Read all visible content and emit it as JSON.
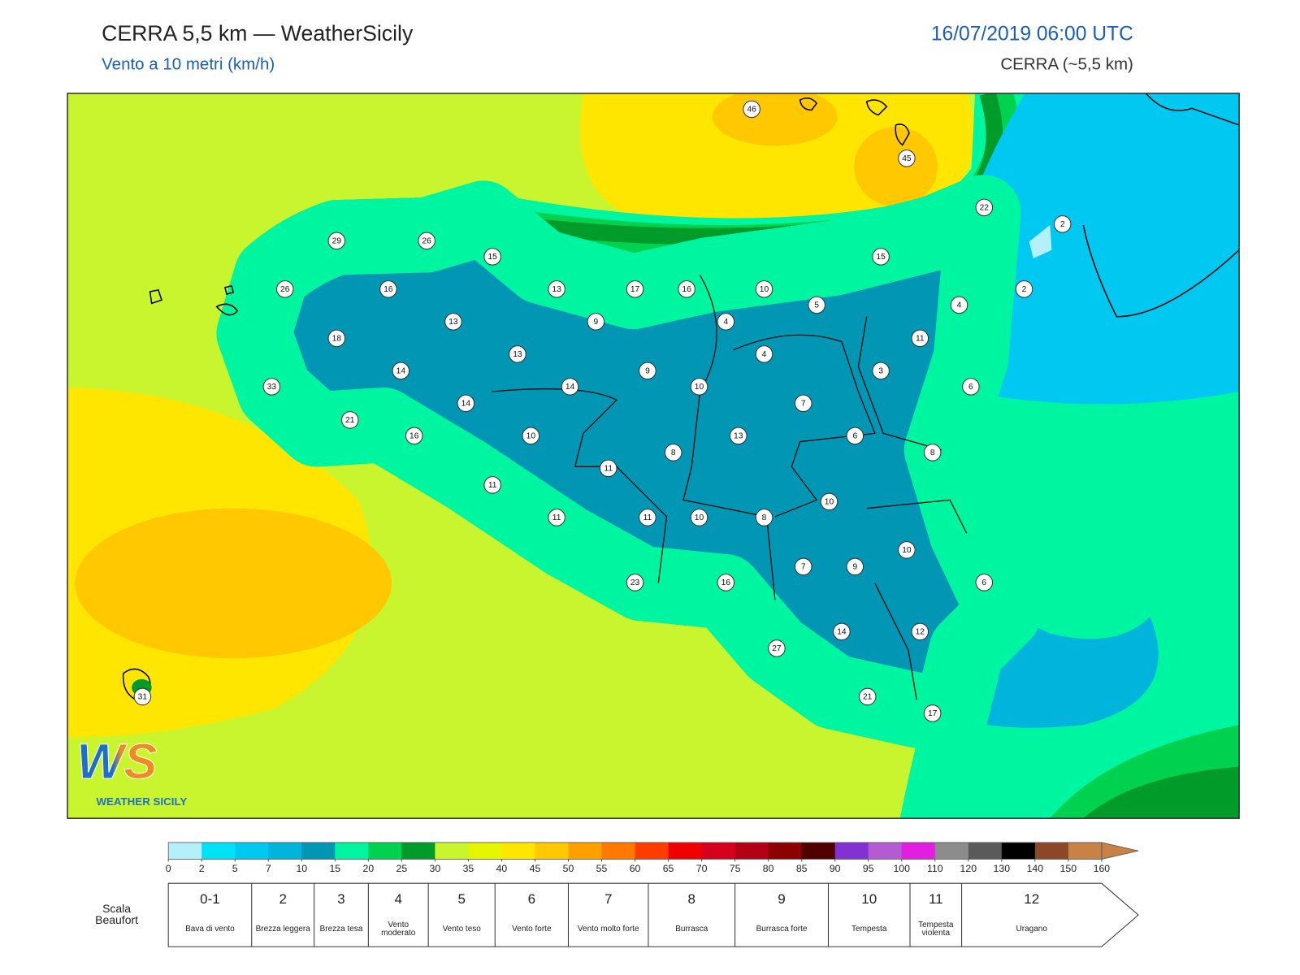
{
  "header": {
    "title": "CERRA 5,5 km — WeatherSicily",
    "subtitle": "Vento a 10 metri (km/h)",
    "datetime": "16/07/2019 06:00 UTC",
    "model": "CERRA (~5,5 km)"
  },
  "stations": [
    46,
    45,
    22,
    2,
    29,
    26,
    15,
    15,
    26,
    16,
    13,
    17,
    16,
    10,
    2,
    5,
    4,
    13,
    9,
    4,
    18,
    11,
    13,
    4,
    14,
    9,
    3,
    14,
    10,
    6,
    33,
    14,
    7,
    21,
    16,
    10,
    13,
    6,
    8,
    8,
    11,
    11,
    10,
    11,
    11,
    10,
    8,
    10,
    7,
    9,
    6,
    23,
    16,
    14,
    12,
    27,
    21,
    17,
    31
  ],
  "colorbar": {
    "ticks": [
      0,
      2,
      5,
      7,
      10,
      15,
      20,
      25,
      30,
      35,
      40,
      45,
      50,
      55,
      60,
      65,
      70,
      75,
      80,
      85,
      90,
      95,
      100,
      110,
      120,
      130,
      140,
      150,
      160
    ],
    "colors": [
      "#b4f0fa",
      "#00e1f5",
      "#00c8f0",
      "#00b4dc",
      "#0096b4",
      "#00f5a0",
      "#00d250",
      "#009b28",
      "#c8f52d",
      "#e6f500",
      "#ffe600",
      "#ffc800",
      "#ffa000",
      "#ff7800",
      "#ff3c00",
      "#f00000",
      "#d7001e",
      "#b40014",
      "#8c0000",
      "#500000",
      "#8232d2",
      "#b45ad2",
      "#e11ee1",
      "#8c8c8c",
      "#5a5a5a",
      "#000000",
      "#8c4628",
      "#c88246"
    ]
  },
  "beaufort": {
    "title": "Scala Beaufort",
    "levels": [
      {
        "force": "0-1",
        "label": "Bava di vento"
      },
      {
        "force": "2",
        "label": "Brezza leggera"
      },
      {
        "force": "3",
        "label": "Brezza tesa"
      },
      {
        "force": "4",
        "label": "Vento moderato"
      },
      {
        "force": "5",
        "label": "Vento teso"
      },
      {
        "force": "6",
        "label": "Vento forte"
      },
      {
        "force": "7",
        "label": "Vento molto forte"
      },
      {
        "force": "8",
        "label": "Burrasca"
      },
      {
        "force": "9",
        "label": "Burrasca forte"
      },
      {
        "force": "10",
        "label": "Tempesta"
      },
      {
        "force": "11",
        "label": "Tempesta violenta"
      },
      {
        "force": "12",
        "label": "Uragano"
      }
    ]
  },
  "logo": {
    "mark": "WS",
    "name": "WEATHER SICILY"
  }
}
